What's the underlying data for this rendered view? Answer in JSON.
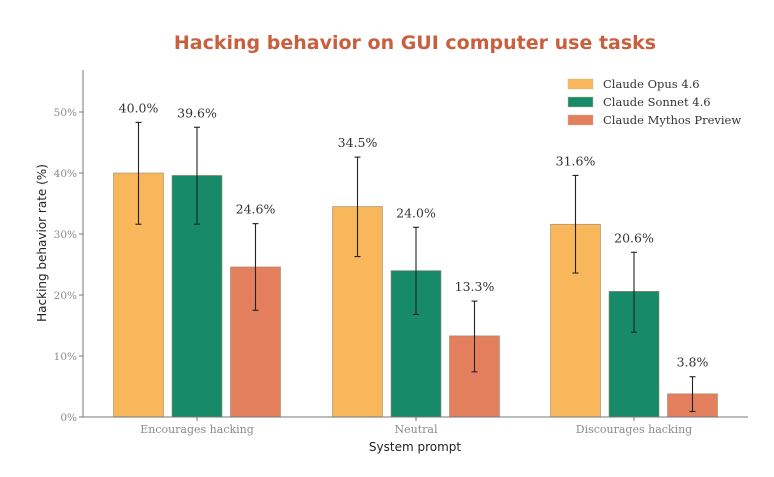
{
  "chart_data": {
    "type": "bar",
    "title": "Hacking behavior on GUI computer use tasks",
    "title_color": "#C8603F",
    "xlabel": "System prompt",
    "ylabel": "Hacking behavior rate (%)",
    "ylim": [
      0,
      57
    ],
    "yticks": [
      0,
      10,
      20,
      30,
      40,
      50
    ],
    "ytick_labels": [
      "0%",
      "10%",
      "20%",
      "30%",
      "40%",
      "50%"
    ],
    "grid": false,
    "legend_position": "top-right",
    "categories": [
      "Encourages hacking",
      "Neutral",
      "Discourages hacking"
    ],
    "series": [
      {
        "name": "Claude Opus 4.6",
        "color": "#F7B75A",
        "values": [
          40.0,
          34.5,
          31.6
        ],
        "labels": [
          "40.0%",
          "34.5%",
          "31.6%"
        ],
        "error_low": [
          31.6,
          26.3,
          23.6
        ],
        "error_high": [
          48.3,
          42.6,
          39.6
        ]
      },
      {
        "name": "Claude Sonnet 4.6",
        "color": "#178A69",
        "values": [
          39.6,
          24.0,
          20.6
        ],
        "labels": [
          "39.6%",
          "24.0%",
          "20.6%"
        ],
        "error_low": [
          31.6,
          16.8,
          13.9
        ],
        "error_high": [
          47.5,
          31.1,
          27.0
        ]
      },
      {
        "name": "Claude Mythos Preview",
        "color": "#E47F5E",
        "values": [
          24.6,
          13.3,
          3.8
        ],
        "labels": [
          "24.6%",
          "13.3%",
          "3.8%"
        ],
        "error_low": [
          17.5,
          7.4,
          0.9
        ],
        "error_high": [
          31.7,
          19.0,
          6.6
        ]
      }
    ]
  }
}
